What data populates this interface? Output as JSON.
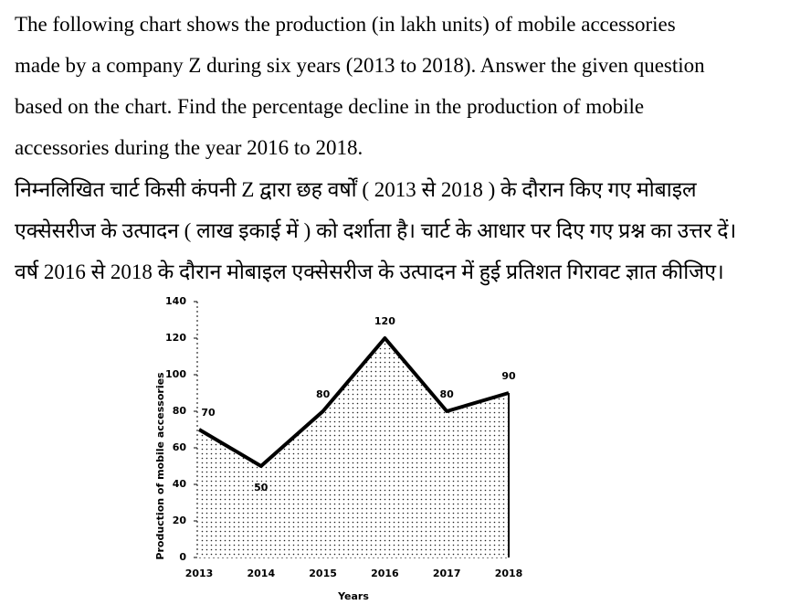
{
  "question_en": [
    "The following chart shows the production (in lakh units) of mobile accessories",
    "made by a company Z during six years (2013 to 2018). Answer the given question",
    "based on the chart. Find the percentage decline in the production of mobile",
    "accessories during the year 2016 to 2018."
  ],
  "question_hi": [
    "निम्नलिखित चार्ट किसी कंपनी Z द्वारा छह वर्षों ( 2013 से 2018 ) के दौरान किए गए मोबाइल",
    "एक्सेसरीज के उत्पादन ( लाख इकाई में ) को दर्शाता है। चार्ट के आधार पर दिए गए प्रश्न का उत्तर दें।",
    "वर्ष 2016 से 2018 के दौरान मोबाइल एक्सेसरीज के उत्पादन में हुई प्रतिशत गिरावट ज्ञात कीजिए।"
  ],
  "chart_data": {
    "type": "area",
    "x_label": "Years",
    "y_label": "Production of mobile accessories",
    "categories": [
      "2013",
      "2014",
      "2015",
      "2016",
      "2017",
      "2018"
    ],
    "values": [
      70,
      50,
      80,
      120,
      80,
      90
    ],
    "color": "#000000",
    "ylim": [
      0,
      140
    ],
    "yticks": [
      0,
      20,
      40,
      60,
      80,
      100,
      120,
      140
    ]
  }
}
